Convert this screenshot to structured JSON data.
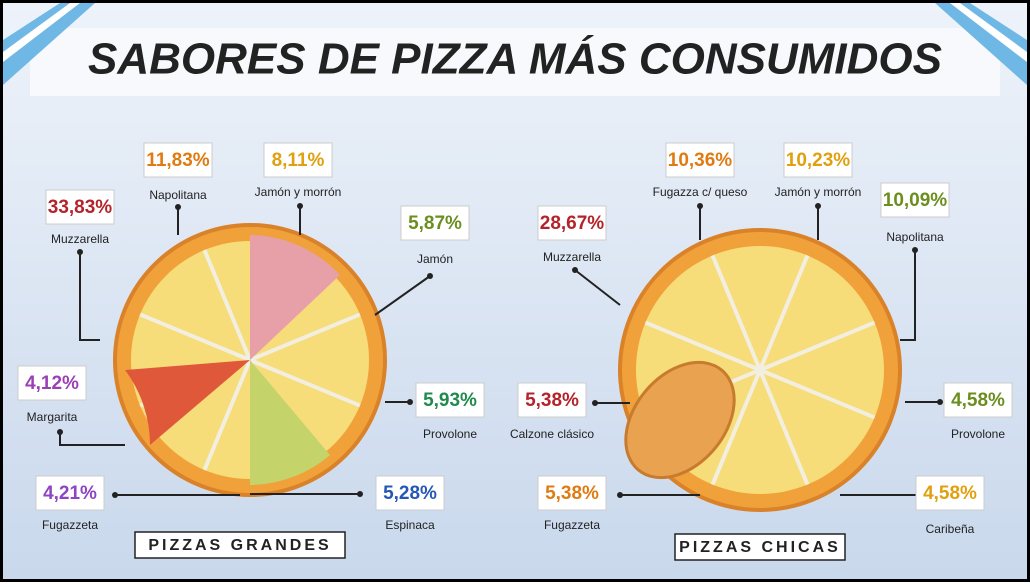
{
  "title": "SABORES DE PIZZA MÁS CONSUMIDOS",
  "panels": [
    {
      "label": "PIZZAS GRANDES",
      "items": [
        {
          "value": "33,83%",
          "name": "Muzzarella"
        },
        {
          "value": "11,83%",
          "name": "Napolitana"
        },
        {
          "value": "8,11%",
          "name": "Jamón y morrón"
        },
        {
          "value": "5,87%",
          "name": "Jamón"
        },
        {
          "value": "4,12%",
          "name": "Margarita"
        },
        {
          "value": "5,93%",
          "name": "Provolone"
        },
        {
          "value": "4,21%",
          "name": "Fugazzeta"
        },
        {
          "value": "5,28%",
          "name": "Espinaca"
        }
      ]
    },
    {
      "label": "PIZZAS CHICAS",
      "items": [
        {
          "value": "28,67%",
          "name": "Muzzarella"
        },
        {
          "value": "10,36%",
          "name": "Fugazza c/ queso"
        },
        {
          "value": "10,23%",
          "name": "Jamón y morrón"
        },
        {
          "value": "10,09%",
          "name": "Napolitana"
        },
        {
          "value": "5,38%",
          "name": "Calzone clásico"
        },
        {
          "value": "4,58%",
          "name": "Provolone"
        },
        {
          "value": "5,38%",
          "name": "Fugazzeta"
        },
        {
          "value": "4,58%",
          "name": "Caribeña"
        }
      ]
    }
  ]
}
